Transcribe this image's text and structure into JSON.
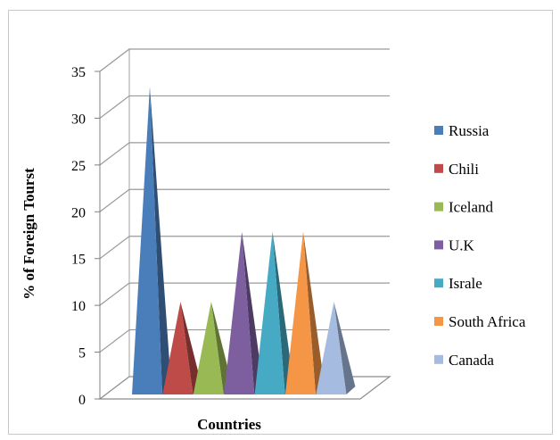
{
  "chart_data": {
    "type": "bar",
    "subtype": "3d-pyramid",
    "title": "",
    "xlabel": "Countries",
    "ylabel": "% of Foreign Tourst",
    "ylim": [
      0,
      35
    ],
    "yticks": [
      0,
      5,
      10,
      15,
      20,
      25,
      30,
      35
    ],
    "grid": true,
    "legend_position": "right",
    "series": [
      {
        "name": "Russia",
        "value": 31,
        "color": "#4a7ebb"
      },
      {
        "name": "Chili",
        "value": 8,
        "color": "#be4b48"
      },
      {
        "name": "Iceland",
        "value": 8,
        "color": "#98b954"
      },
      {
        "name": "U.K",
        "value": 15.5,
        "color": "#7d5fa0"
      },
      {
        "name": "Israle",
        "value": 15.5,
        "color": "#46aac5"
      },
      {
        "name": "South Africa",
        "value": 15.5,
        "color": "#f59646"
      },
      {
        "name": "Canada",
        "value": 8,
        "color": "#a5bce0"
      }
    ]
  }
}
